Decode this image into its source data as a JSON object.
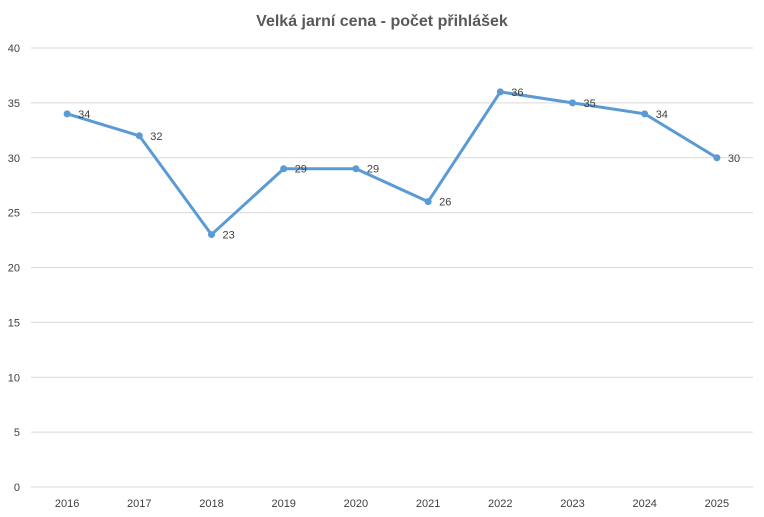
{
  "chart_data": {
    "type": "line",
    "title": "Velká jarní cena - počet přihlášek",
    "xlabel": "",
    "ylabel": "",
    "categories": [
      "2016",
      "2017",
      "2018",
      "2019",
      "2020",
      "2021",
      "2022",
      "2023",
      "2024",
      "2025"
    ],
    "series": [
      {
        "values": [
          34,
          32,
          23,
          29,
          29,
          26,
          36,
          35,
          34,
          30
        ],
        "color": "#5b9bd5"
      }
    ],
    "ylim": [
      0,
      40
    ],
    "yticks": [
      0,
      5,
      10,
      15,
      20,
      25,
      30,
      35,
      40
    ],
    "grid": true,
    "legend": "none",
    "data_labels": true
  }
}
